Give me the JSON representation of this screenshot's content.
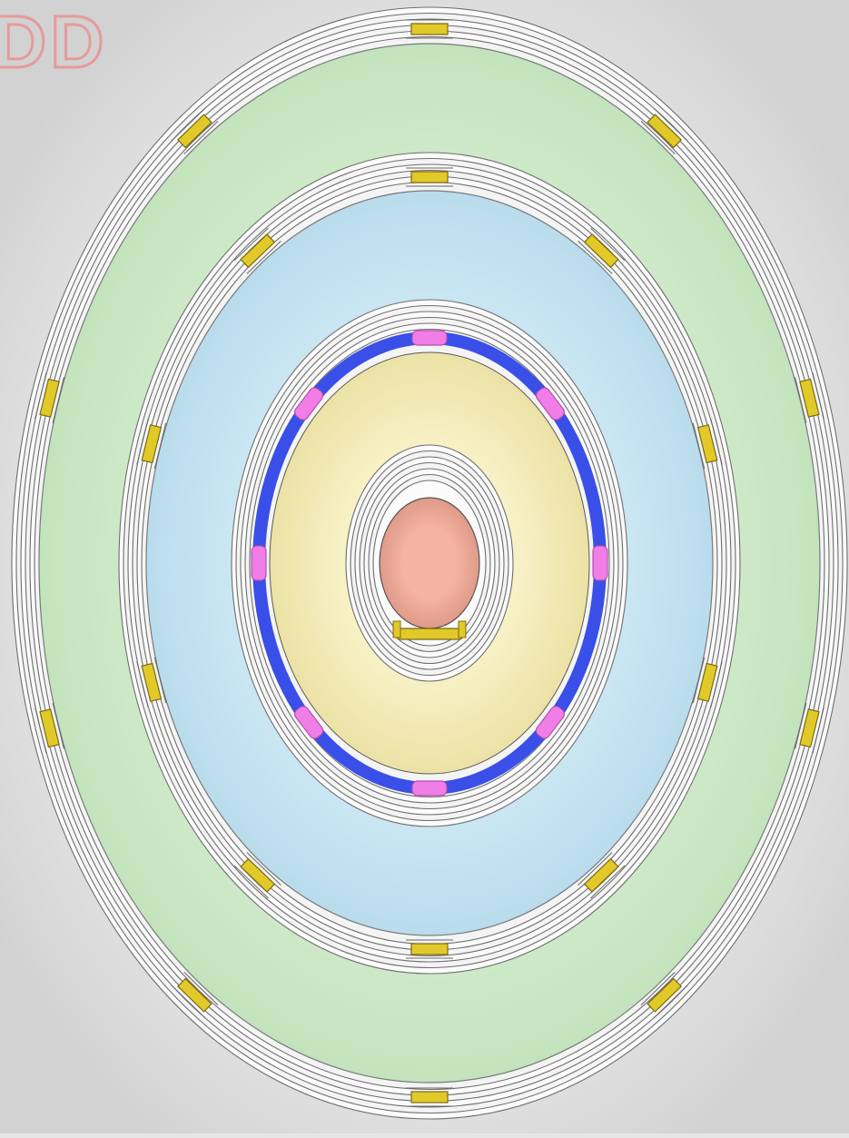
{
  "watermark": {
    "text": "DD",
    "color": "#e79a9a"
  },
  "background": "#e6e6e6",
  "zones": [
    {
      "name": "outer-zone",
      "fill": "#d9f0d4",
      "shade": "#c3e3bd",
      "brackets": 10,
      "bracket_color": "#e2c92a"
    },
    {
      "name": "middle-zone",
      "fill": "#d3ecf6",
      "shade": "#b9dcec",
      "brackets": 10,
      "bracket_color": "#e2c92a"
    },
    {
      "name": "inner-zone",
      "fill": "#f7f1c6",
      "shade": "#ece2a6",
      "connectors": 8,
      "connector_color": "#f07ee6",
      "ring_color": "#3a4fe8"
    },
    {
      "name": "core",
      "fill": "#f4b3a3",
      "shade": "#e09a88"
    }
  ],
  "bottom_support": {
    "color": "#e2c92a"
  }
}
